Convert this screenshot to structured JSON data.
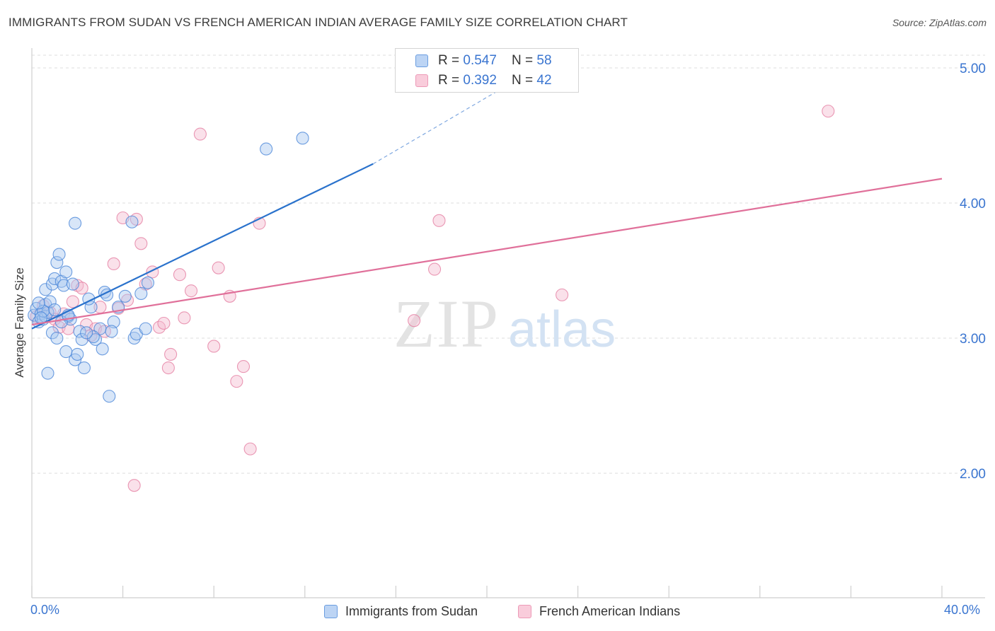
{
  "title": "IMMIGRANTS FROM SUDAN VS FRENCH AMERICAN INDIAN AVERAGE FAMILY SIZE CORRELATION CHART",
  "source": "Source: ZipAtlas.com",
  "watermark": {
    "zip": "ZIP",
    "atlas": "atlas"
  },
  "legend_top": [
    {
      "r_label": "R = ",
      "r_value": "0.547",
      "n_label": "N = ",
      "n_value": "58"
    },
    {
      "r_label": "R = ",
      "r_value": "0.392",
      "n_label": "N = ",
      "n_value": "42"
    }
  ],
  "x_tick_labels": {
    "min": "0.0%",
    "max": "40.0%"
  },
  "colors": {
    "blue_fill": "#a9c8f0",
    "blue_stroke": "#4a86d8",
    "blue_line": "#2a72cc",
    "pink_fill": "#f5bdd0",
    "pink_stroke": "#e57fa3",
    "pink_line": "#e0709a",
    "tick_label": "#3a75d0",
    "grid": "#dcdcdc"
  },
  "chart_data": {
    "type": "scatter",
    "xlabel": "",
    "ylabel": "Average Family Size",
    "xlim": [
      0,
      40
    ],
    "ylim": [
      1.0,
      5.2
    ],
    "y_ticks": [
      2.0,
      3.0,
      4.0,
      5.0
    ],
    "y_tick_labels": [
      "2.00",
      "3.00",
      "4.00",
      "5.00"
    ],
    "grid": true,
    "series": [
      {
        "name": "Immigrants from Sudan",
        "color": "#4a86d8",
        "R": 0.547,
        "N": 58,
        "trend": {
          "x0": 0.0,
          "y0": 3.07,
          "x1": 15.0,
          "y1": 4.29,
          "dash_to_x": 21.7,
          "dash_to_y": 4.95
        },
        "points": [
          [
            0.1,
            3.17
          ],
          [
            0.2,
            3.22
          ],
          [
            0.3,
            3.12
          ],
          [
            0.4,
            3.18
          ],
          [
            0.5,
            3.14
          ],
          [
            0.6,
            3.25
          ],
          [
            0.6,
            3.16
          ],
          [
            0.7,
            3.19
          ],
          [
            0.8,
            3.27
          ],
          [
            0.6,
            3.36
          ],
          [
            0.9,
            3.4
          ],
          [
            1.0,
            3.44
          ],
          [
            1.1,
            3.56
          ],
          [
            1.2,
            3.62
          ],
          [
            1.3,
            3.42
          ],
          [
            1.4,
            3.39
          ],
          [
            1.5,
            3.49
          ],
          [
            1.6,
            3.16
          ],
          [
            1.7,
            3.14
          ],
          [
            1.8,
            3.4
          ],
          [
            1.9,
            2.84
          ],
          [
            2.0,
            2.88
          ],
          [
            2.1,
            3.05
          ],
          [
            2.2,
            2.99
          ],
          [
            2.3,
            2.78
          ],
          [
            1.9,
            3.85
          ],
          [
            2.6,
            3.23
          ],
          [
            2.8,
            2.99
          ],
          [
            3.0,
            3.07
          ],
          [
            2.5,
            3.29
          ],
          [
            2.7,
            3.01
          ],
          [
            3.2,
            3.34
          ],
          [
            3.3,
            3.32
          ],
          [
            3.6,
            3.12
          ],
          [
            3.8,
            3.23
          ],
          [
            4.1,
            3.31
          ],
          [
            4.4,
            3.86
          ],
          [
            4.5,
            3.0
          ],
          [
            4.6,
            3.03
          ],
          [
            4.8,
            3.33
          ],
          [
            5.0,
            3.07
          ],
          [
            5.1,
            3.41
          ],
          [
            3.4,
            2.57
          ],
          [
            1.3,
            3.12
          ],
          [
            1.0,
            3.21
          ],
          [
            0.5,
            3.2
          ],
          [
            0.9,
            3.04
          ],
          [
            1.1,
            3.0
          ],
          [
            2.4,
            3.04
          ],
          [
            3.5,
            3.05
          ],
          [
            3.1,
            2.92
          ],
          [
            1.6,
            3.17
          ],
          [
            0.3,
            3.26
          ],
          [
            0.7,
            2.74
          ],
          [
            1.5,
            2.9
          ],
          [
            10.3,
            4.4
          ],
          [
            11.9,
            4.48
          ],
          [
            0.4,
            3.15
          ]
        ]
      },
      {
        "name": "French American Indians",
        "color": "#e57fa3",
        "R": 0.392,
        "N": 42,
        "trend": {
          "x0": 0.0,
          "y0": 3.1,
          "x1": 40.0,
          "y1": 4.18
        },
        "points": [
          [
            0.2,
            3.16
          ],
          [
            0.5,
            3.24
          ],
          [
            0.8,
            3.19
          ],
          [
            1.0,
            3.14
          ],
          [
            1.2,
            3.08
          ],
          [
            1.4,
            3.18
          ],
          [
            1.6,
            3.07
          ],
          [
            1.8,
            3.27
          ],
          [
            2.0,
            3.39
          ],
          [
            2.2,
            3.37
          ],
          [
            2.4,
            3.1
          ],
          [
            2.6,
            3.02
          ],
          [
            2.8,
            3.07
          ],
          [
            3.0,
            3.23
          ],
          [
            3.2,
            3.05
          ],
          [
            3.6,
            3.55
          ],
          [
            3.8,
            3.22
          ],
          [
            4.0,
            3.89
          ],
          [
            4.2,
            3.28
          ],
          [
            4.6,
            3.88
          ],
          [
            4.8,
            3.7
          ],
          [
            5.0,
            3.4
          ],
          [
            5.3,
            3.49
          ],
          [
            5.6,
            3.08
          ],
          [
            5.8,
            3.11
          ],
          [
            6.0,
            2.78
          ],
          [
            6.1,
            2.88
          ],
          [
            6.5,
            3.47
          ],
          [
            6.7,
            3.15
          ],
          [
            7.0,
            3.35
          ],
          [
            7.4,
            4.51
          ],
          [
            8.2,
            3.52
          ],
          [
            8.7,
            3.31
          ],
          [
            8.0,
            2.94
          ],
          [
            9.0,
            2.68
          ],
          [
            9.3,
            2.79
          ],
          [
            9.6,
            2.18
          ],
          [
            10.0,
            3.85
          ],
          [
            16.8,
            3.13
          ],
          [
            17.7,
            3.51
          ],
          [
            17.9,
            3.87
          ],
          [
            23.3,
            3.32
          ]
        ],
        "extra_points": [
          [
            35.0,
            4.68
          ],
          [
            4.5,
            1.91
          ]
        ]
      }
    ]
  },
  "bottom_legend": [
    {
      "label": "Immigrants from Sudan"
    },
    {
      "label": "French American Indians"
    }
  ]
}
